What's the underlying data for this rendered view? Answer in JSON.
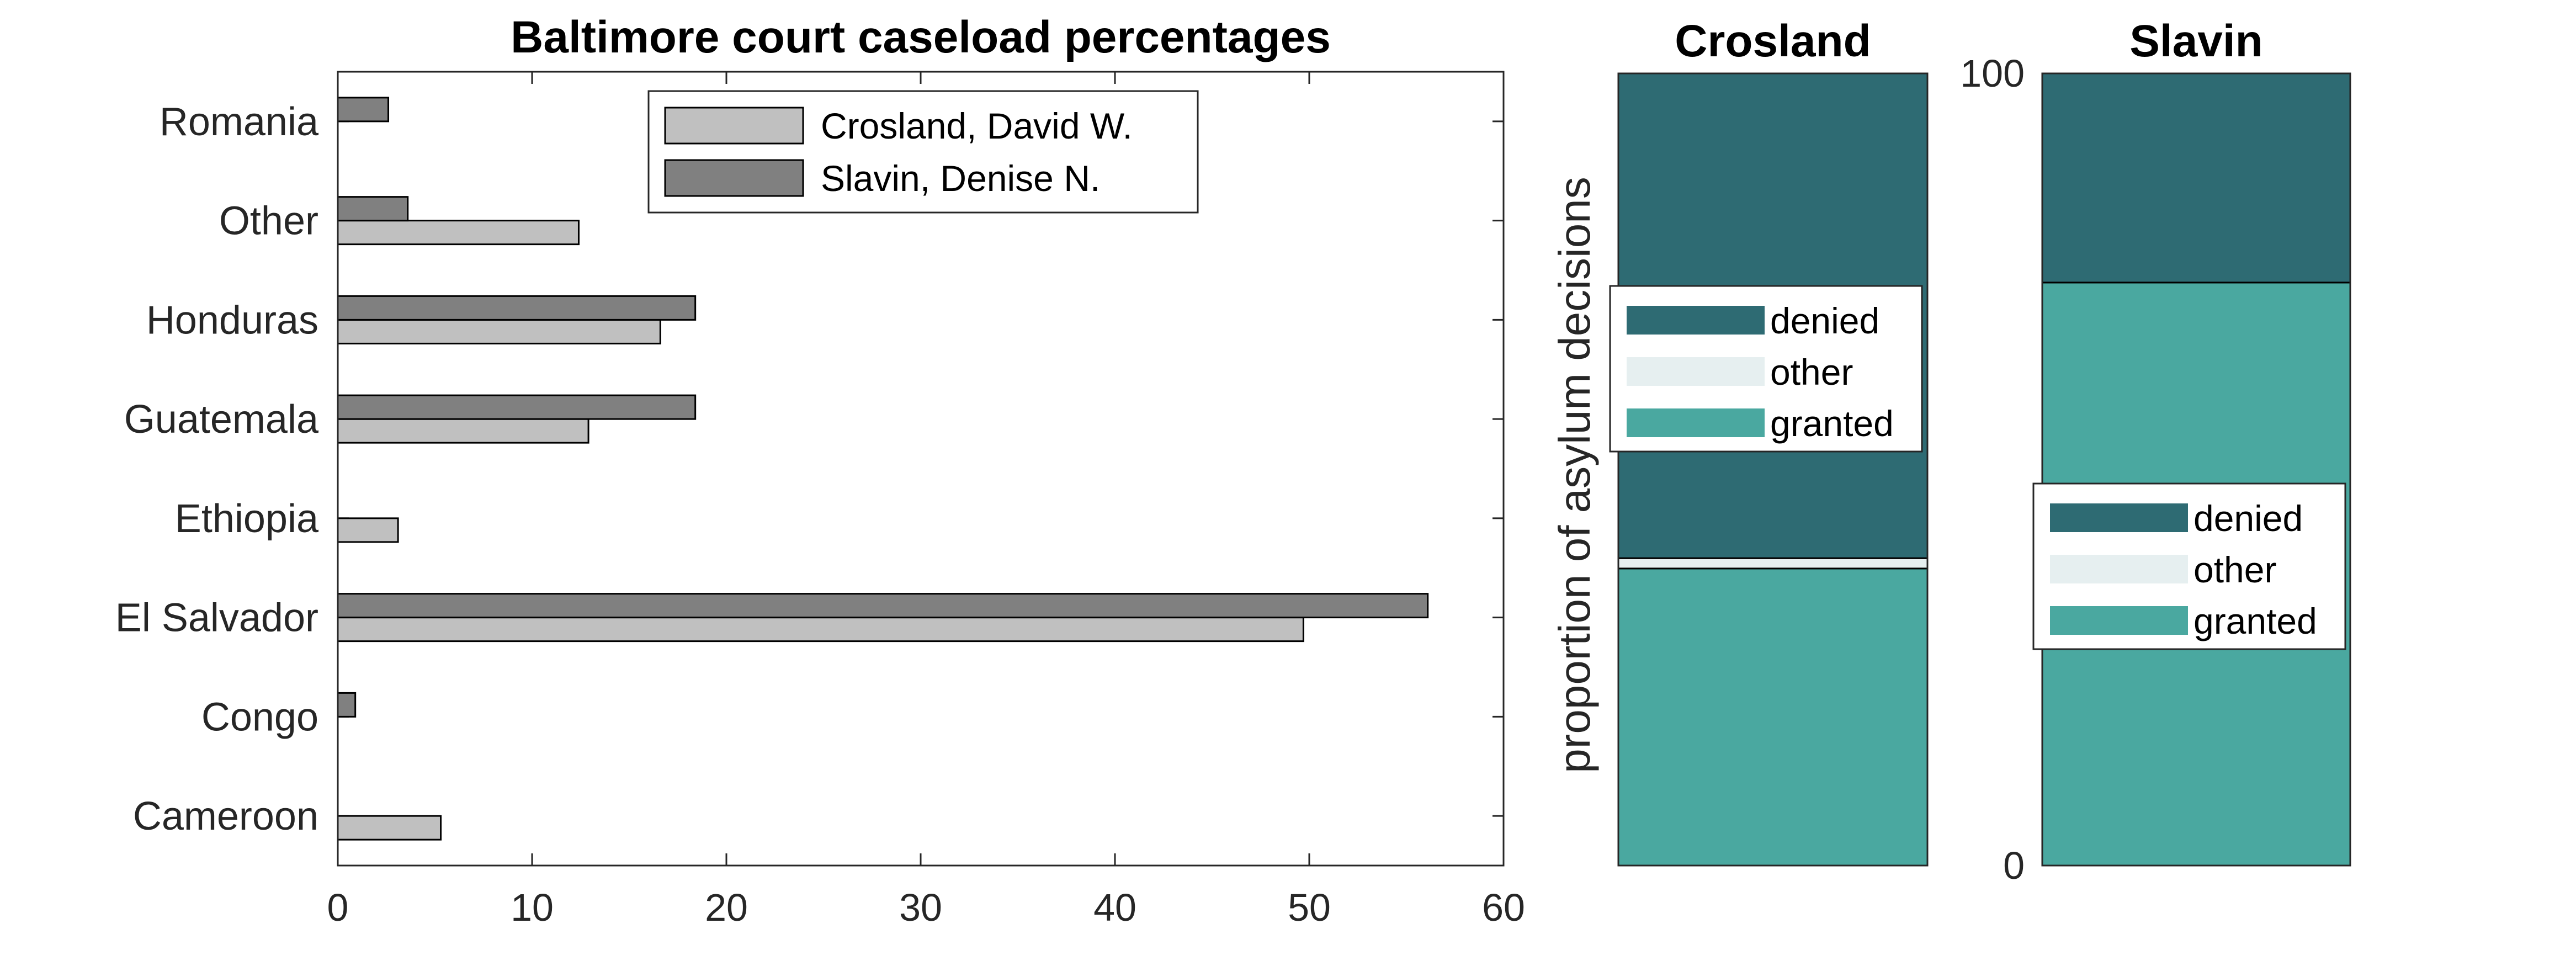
{
  "chart_data": [
    {
      "type": "bar",
      "orientation": "horizontal",
      "title": "Baltimore court caseload percentages",
      "xlabel": "",
      "ylabel": "",
      "categories": [
        "Romania",
        "Other",
        "Honduras",
        "Guatemala",
        "Ethiopia",
        "El Salvador",
        "Congo",
        "Cameroon"
      ],
      "series": [
        {
          "name": "Crosland, David W.",
          "color": "#c0c0c0",
          "values": [
            0,
            12.4,
            16.6,
            12.9,
            3.1,
            49.7,
            0,
            5.3
          ]
        },
        {
          "name": "Slavin, Denise N.",
          "color": "#808080",
          "values": [
            2.6,
            3.6,
            18.4,
            18.4,
            0,
            56.1,
            0.9,
            0
          ]
        }
      ],
      "xlim": [
        0,
        60
      ],
      "xticks": [
        "0",
        "10",
        "20",
        "30",
        "40",
        "50",
        "60"
      ],
      "grid": false,
      "legend_position": "top-right"
    },
    {
      "type": "bar",
      "stacked": true,
      "title": "Crosland",
      "ylabel": "proportion of asylum decisions",
      "ylim": [
        0,
        100
      ],
      "segments": [
        {
          "name": "granted",
          "color": "#4aa8a0",
          "value": 37.5
        },
        {
          "name": "other",
          "color": "#e6eff0",
          "value": 1.3
        },
        {
          "name": "denied",
          "color": "#2e6b73",
          "value": 61.2
        }
      ],
      "legend_position": "middle"
    },
    {
      "type": "bar",
      "stacked": true,
      "title": "Slavin",
      "ylim": [
        0,
        100
      ],
      "yticks": [
        "0",
        "100"
      ],
      "segments": [
        {
          "name": "granted",
          "color": "#4aa8a0",
          "value": 73.6
        },
        {
          "name": "other",
          "color": "#e6eff0",
          "value": 0
        },
        {
          "name": "denied",
          "color": "#2e6b73",
          "value": 26.4
        }
      ],
      "legend_position": "middle"
    }
  ]
}
